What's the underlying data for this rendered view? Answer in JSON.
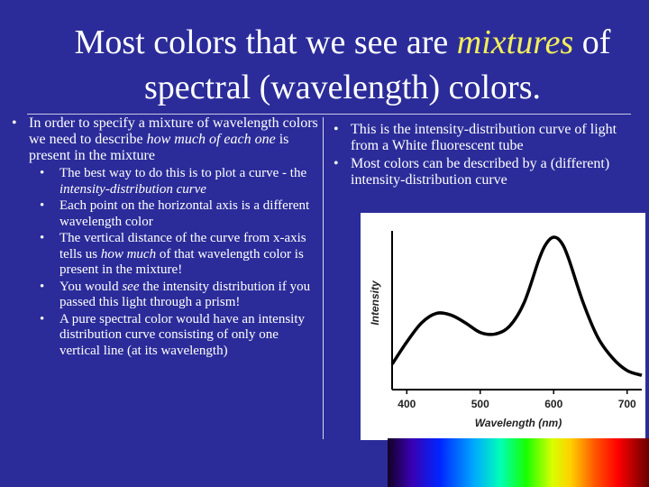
{
  "title": {
    "part1": "Most colors that we see are ",
    "emph": "mixtures",
    "part2": " of spectral (wavelength) colors."
  },
  "left": {
    "intro": [
      "In order to specify a mixture of wavelength colors we need to describe ",
      "how much of each one",
      " is present in the mixture"
    ],
    "sub1": [
      "The best way to do this is to plot a curve - the ",
      "intensity-distribution curve"
    ],
    "sub2": "Each point on the horizontal axis is a different wavelength color",
    "sub3": [
      "The vertical distance of the curve from x-axis tells us ",
      "how much",
      " of that wavelength color is present in the mixture!"
    ],
    "sub4": [
      "You would ",
      "see",
      " the intensity distribution if you passed this light through a prism!"
    ],
    "sub5": "A pure spectral color would have an intensity distribution curve consisting of only one vertical line (at its wavelength)"
  },
  "right": {
    "b1": "This is the intensity-distribution curve of light from a White fluorescent tube",
    "b2": "Most colors can be described by a (different) intensity-distribution curve"
  },
  "chart_data": {
    "type": "line",
    "xlabel": "Wavelength (nm)",
    "ylabel": "Intensity",
    "xlim": [
      380,
      720
    ],
    "xticks": [
      400,
      500,
      600,
      700
    ],
    "tick_labels": [
      "400",
      "500",
      "600",
      "700"
    ],
    "grid": false,
    "series": [
      {
        "x": [
          380,
          400,
          420,
          440,
          460,
          480,
          500,
          520,
          540,
          560,
          580,
          590,
          600,
          610,
          620,
          640,
          660,
          680,
          700,
          720
        ],
        "y": [
          0.16,
          0.3,
          0.42,
          0.48,
          0.47,
          0.42,
          0.36,
          0.35,
          0.4,
          0.55,
          0.82,
          0.92,
          0.96,
          0.93,
          0.83,
          0.55,
          0.33,
          0.2,
          0.12,
          0.09
        ]
      }
    ]
  }
}
